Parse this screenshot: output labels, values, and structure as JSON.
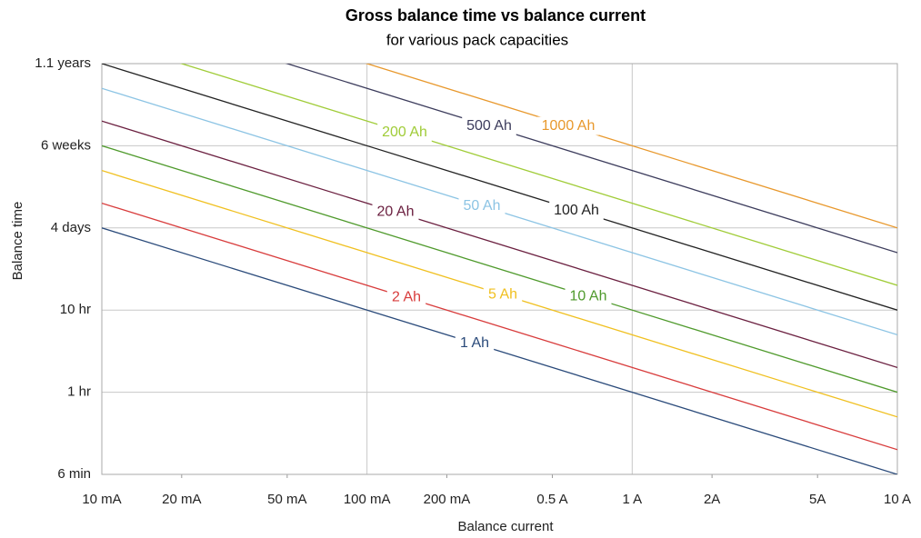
{
  "chart_data": {
    "type": "line",
    "title": "Gross balance time vs balance current",
    "subtitle": "for various pack capacities",
    "x_label": "Balance current",
    "y_label": "Balance time",
    "log_x": true,
    "log_y": true,
    "grid": true,
    "x": [
      0.01,
      10
    ],
    "xlim": [
      0.01,
      10
    ],
    "xticks": [
      {
        "value": 0.01,
        "label": "10 mA"
      },
      {
        "value": 0.02,
        "label": "20 mA"
      },
      {
        "value": 0.05,
        "label": "50 mA"
      },
      {
        "value": 0.1,
        "label": "100 mA"
      },
      {
        "value": 0.2,
        "label": "200 mA"
      },
      {
        "value": 0.5,
        "label": "0.5 A"
      },
      {
        "value": 1,
        "label": "1 A"
      },
      {
        "value": 2,
        "label": "2A"
      },
      {
        "value": 5,
        "label": "5A"
      },
      {
        "value": 10,
        "label": "10 A"
      }
    ],
    "ylim": [
      0.1,
      10000
    ],
    "yticks": [
      {
        "value": 0.1,
        "label": "6 min"
      },
      {
        "value": 1,
        "label": "1 hr"
      },
      {
        "value": 10,
        "label": "10 hr"
      },
      {
        "value": 100,
        "label": "4 days"
      },
      {
        "value": 1000,
        "label": "6 weeks"
      },
      {
        "value": 10000,
        "label": "1.1 years"
      }
    ],
    "series": [
      {
        "name": "1 Ah",
        "color": "#2a4a7a",
        "values": [
          100,
          0.1
        ]
      },
      {
        "name": "2 Ah",
        "color": "#d83c3c",
        "values": [
          200,
          0.2
        ]
      },
      {
        "name": "5 Ah",
        "color": "#f0c020",
        "values": [
          500,
          0.5
        ]
      },
      {
        "name": "10 Ah",
        "color": "#4f9a2c",
        "values": [
          1000,
          1
        ]
      },
      {
        "name": "20 Ah",
        "color": "#6b2040",
        "values": [
          2000,
          2
        ]
      },
      {
        "name": "50 Ah",
        "color": "#8cc4e4",
        "values": [
          5000,
          5
        ]
      },
      {
        "name": "100 Ah",
        "color": "#222222",
        "values": [
          10000,
          10
        ]
      },
      {
        "name": "200 Ah",
        "color": "#a0cc38",
        "values": [
          20000,
          20
        ]
      },
      {
        "name": "500 Ah",
        "color": "#3c3c5c",
        "values": [
          50000,
          50
        ]
      },
      {
        "name": "1000 Ah",
        "color": "#e8982c",
        "values": [
          100000,
          100
        ]
      }
    ]
  }
}
